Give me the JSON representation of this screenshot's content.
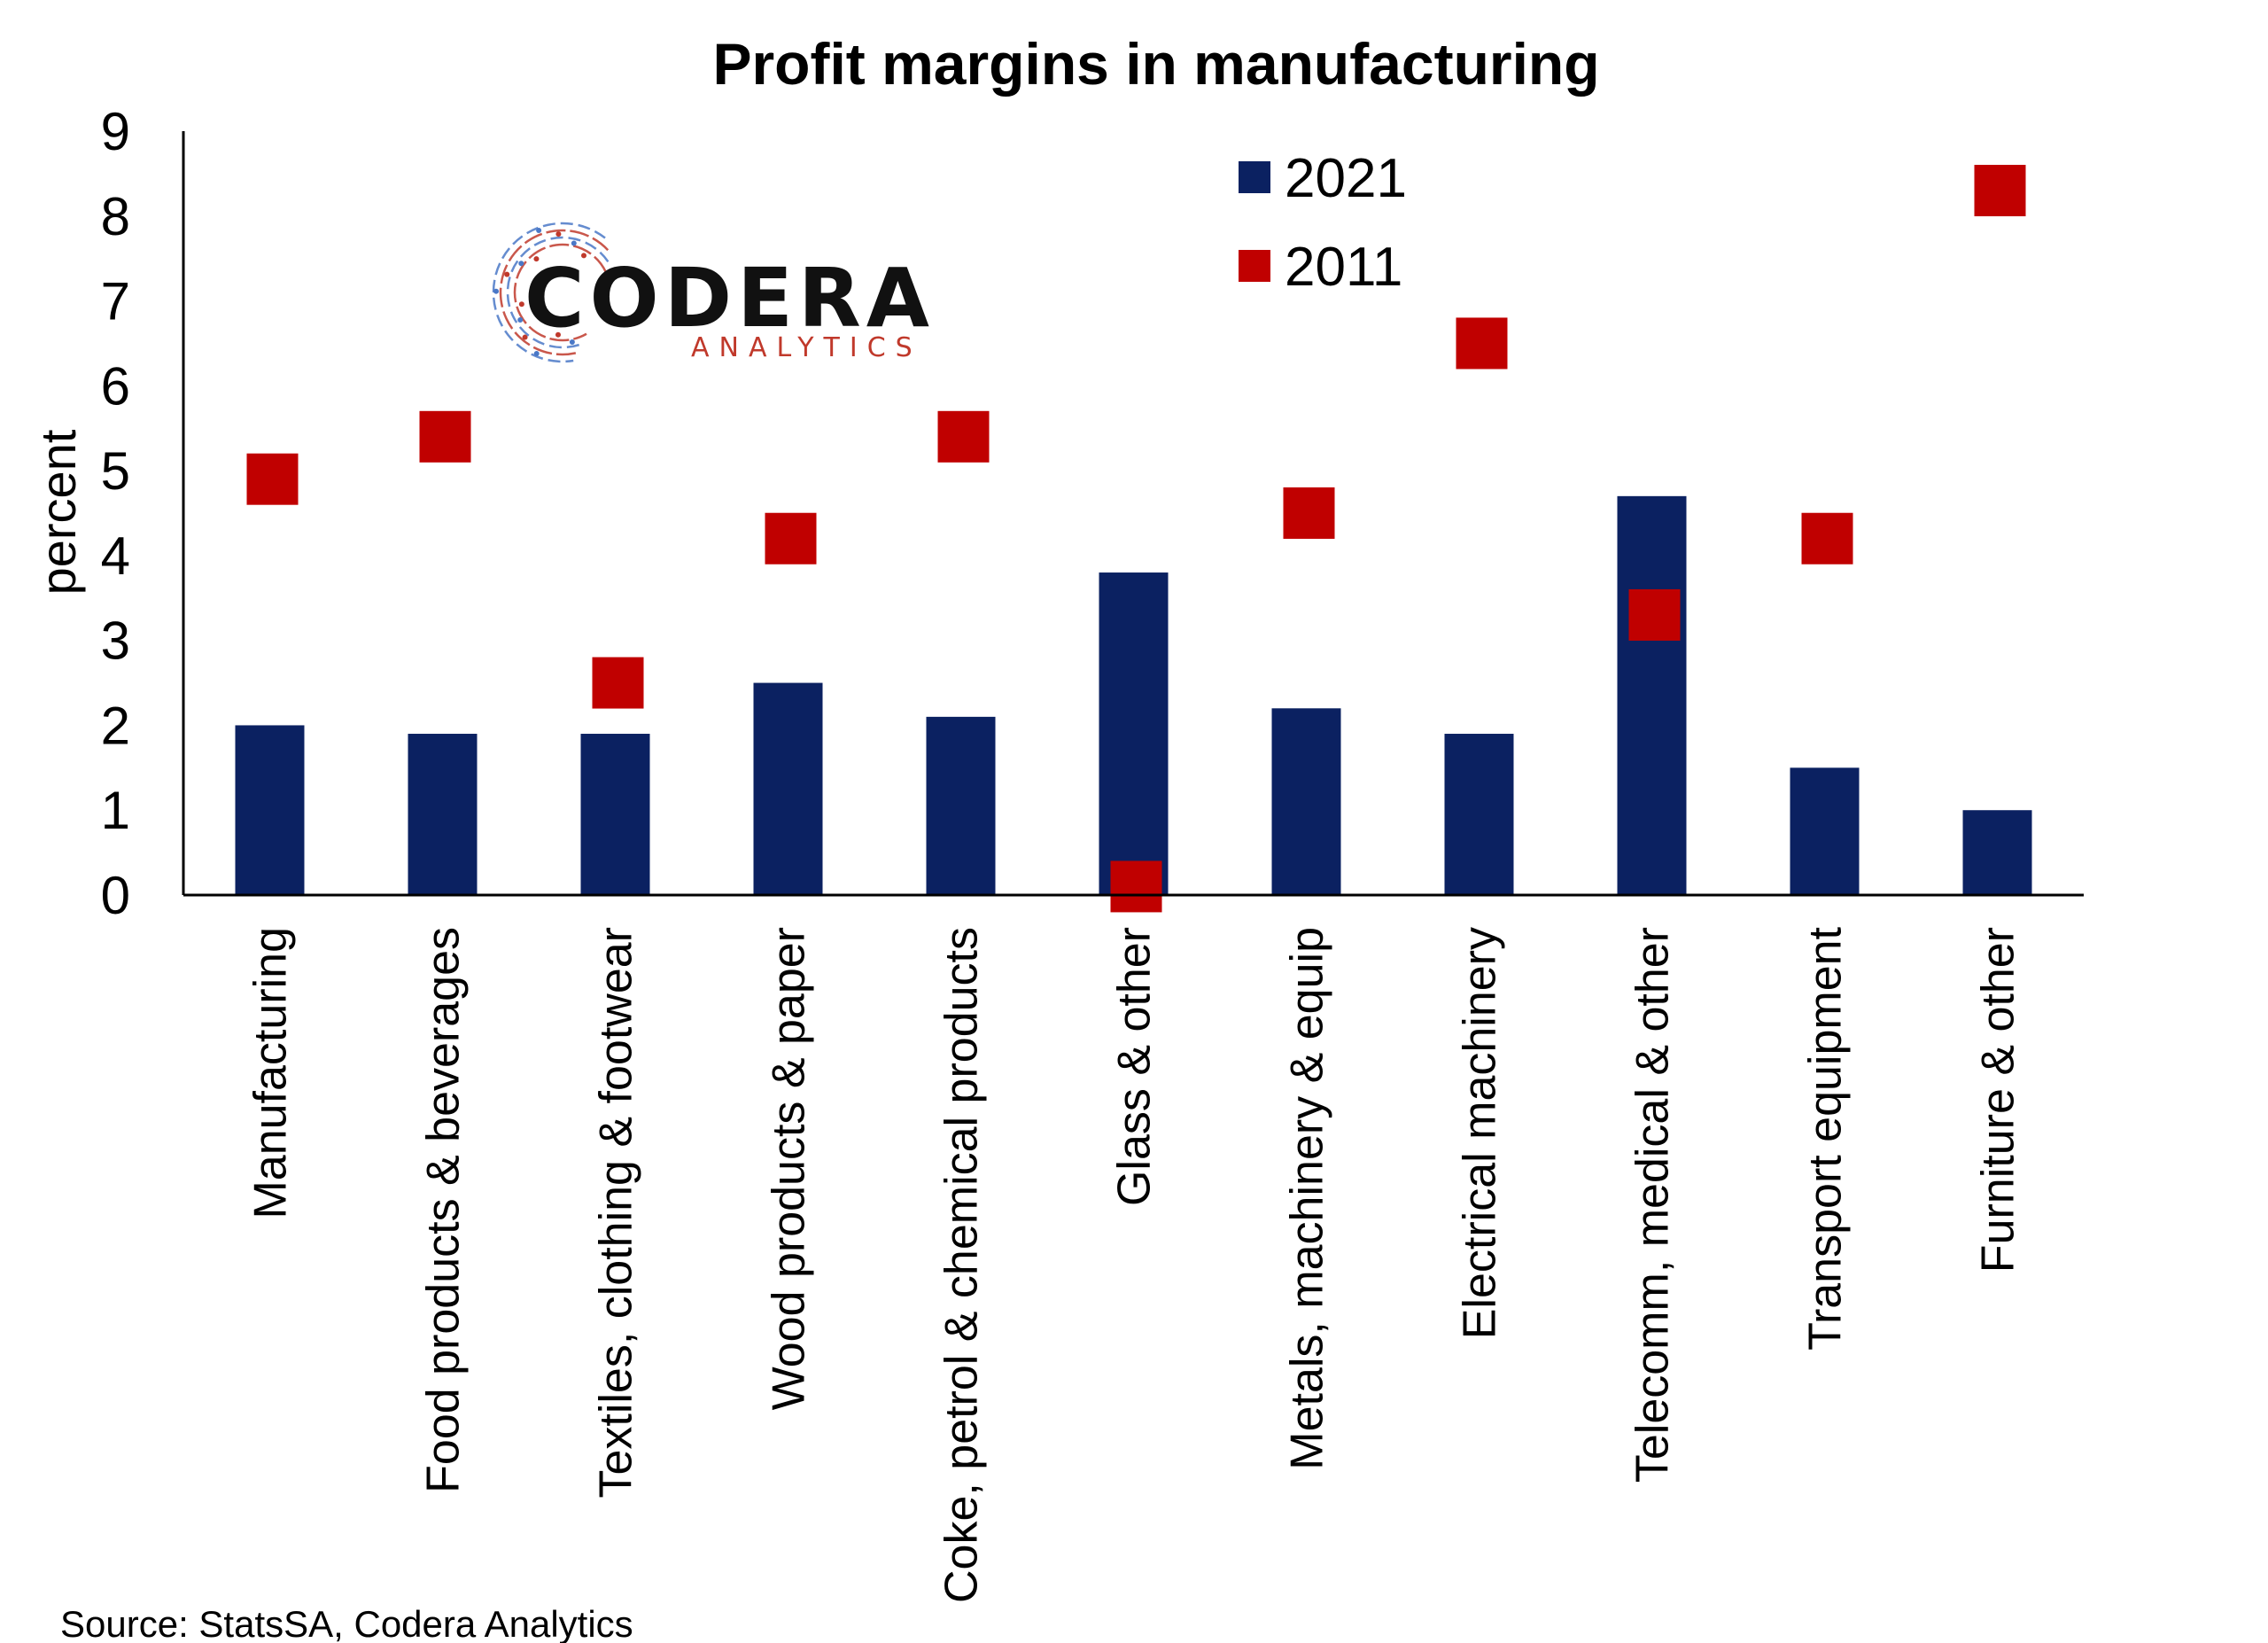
{
  "chart_data": {
    "type": "bar",
    "title": "Profit margins in manufacturing",
    "ylabel": "percent",
    "xlabel": "",
    "ylim": [
      0,
      9
    ],
    "yticks": [
      "0",
      "1",
      "2",
      "3",
      "4",
      "5",
      "6",
      "7",
      "8",
      "9"
    ],
    "categories": [
      "Manufacturing",
      "Food products & beverages",
      "Textiles, clothing & footwear",
      "Wood products & paper",
      "Coke, petrol & chemical products",
      "Glass & other",
      "Metals, machinery & equip",
      "Electrical machinery",
      "Telecomm, medical & other",
      "Transport equipment",
      "Furniture & other"
    ],
    "series": [
      {
        "name": "2021",
        "type": "bar",
        "color": "#0b2161",
        "values": [
          2.0,
          1.9,
          1.9,
          2.5,
          2.1,
          3.8,
          2.2,
          1.9,
          4.7,
          1.5,
          1.0
        ]
      },
      {
        "name": "2011",
        "type": "marker",
        "marker": "square",
        "color": "#c00000",
        "values": [
          4.9,
          5.4,
          2.5,
          4.2,
          5.4,
          0.1,
          4.5,
          6.5,
          3.3,
          4.2,
          8.3
        ]
      }
    ],
    "legend_position": "top-right",
    "grid": false,
    "source": "Source: StatsSA, Codera Analytics"
  },
  "logo": {
    "name": "CODERA",
    "tagline": "ANALYTICS",
    "colors": {
      "red": "#c0392b",
      "blue": "#4a78c7"
    }
  }
}
